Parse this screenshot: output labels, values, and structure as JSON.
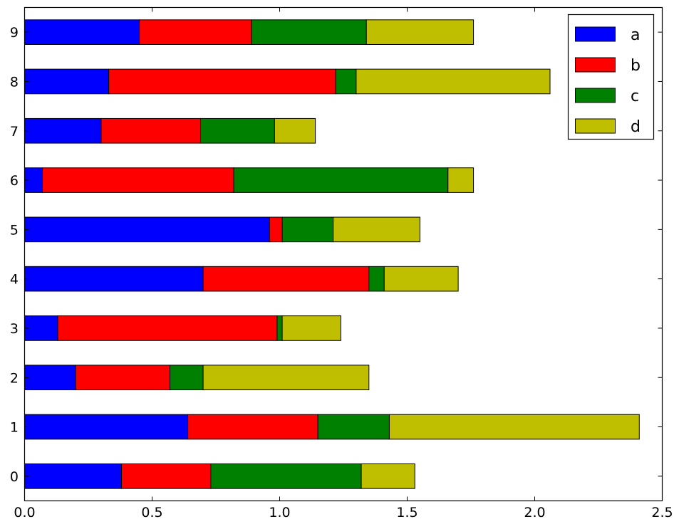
{
  "chart_data": {
    "type": "bar",
    "orientation": "horizontal",
    "stacked": true,
    "categories": [
      "0",
      "1",
      "2",
      "3",
      "4",
      "5",
      "6",
      "7",
      "8",
      "9"
    ],
    "series": [
      {
        "name": "a",
        "color": "#0000ff",
        "values": [
          0.38,
          0.64,
          0.2,
          0.13,
          0.7,
          0.96,
          0.07,
          0.3,
          0.33,
          0.45
        ]
      },
      {
        "name": "b",
        "color": "#ff0000",
        "values": [
          0.35,
          0.51,
          0.37,
          0.86,
          0.65,
          0.05,
          0.75,
          0.39,
          0.89,
          0.44
        ]
      },
      {
        "name": "c",
        "color": "#008000",
        "values": [
          0.59,
          0.28,
          0.13,
          0.02,
          0.06,
          0.2,
          0.84,
          0.29,
          0.08,
          0.45
        ]
      },
      {
        "name": "d",
        "color": "#bfbf00",
        "values": [
          0.21,
          0.98,
          0.65,
          0.23,
          0.29,
          0.34,
          0.1,
          0.16,
          0.76,
          0.42
        ]
      }
    ],
    "xlim": [
      0.0,
      2.5
    ],
    "xticks": [
      "0.0",
      "0.5",
      "1.0",
      "1.5",
      "2.0",
      "2.5"
    ],
    "title": "",
    "xlabel": "",
    "ylabel": "",
    "grid": false,
    "legend_position": "top-right"
  }
}
